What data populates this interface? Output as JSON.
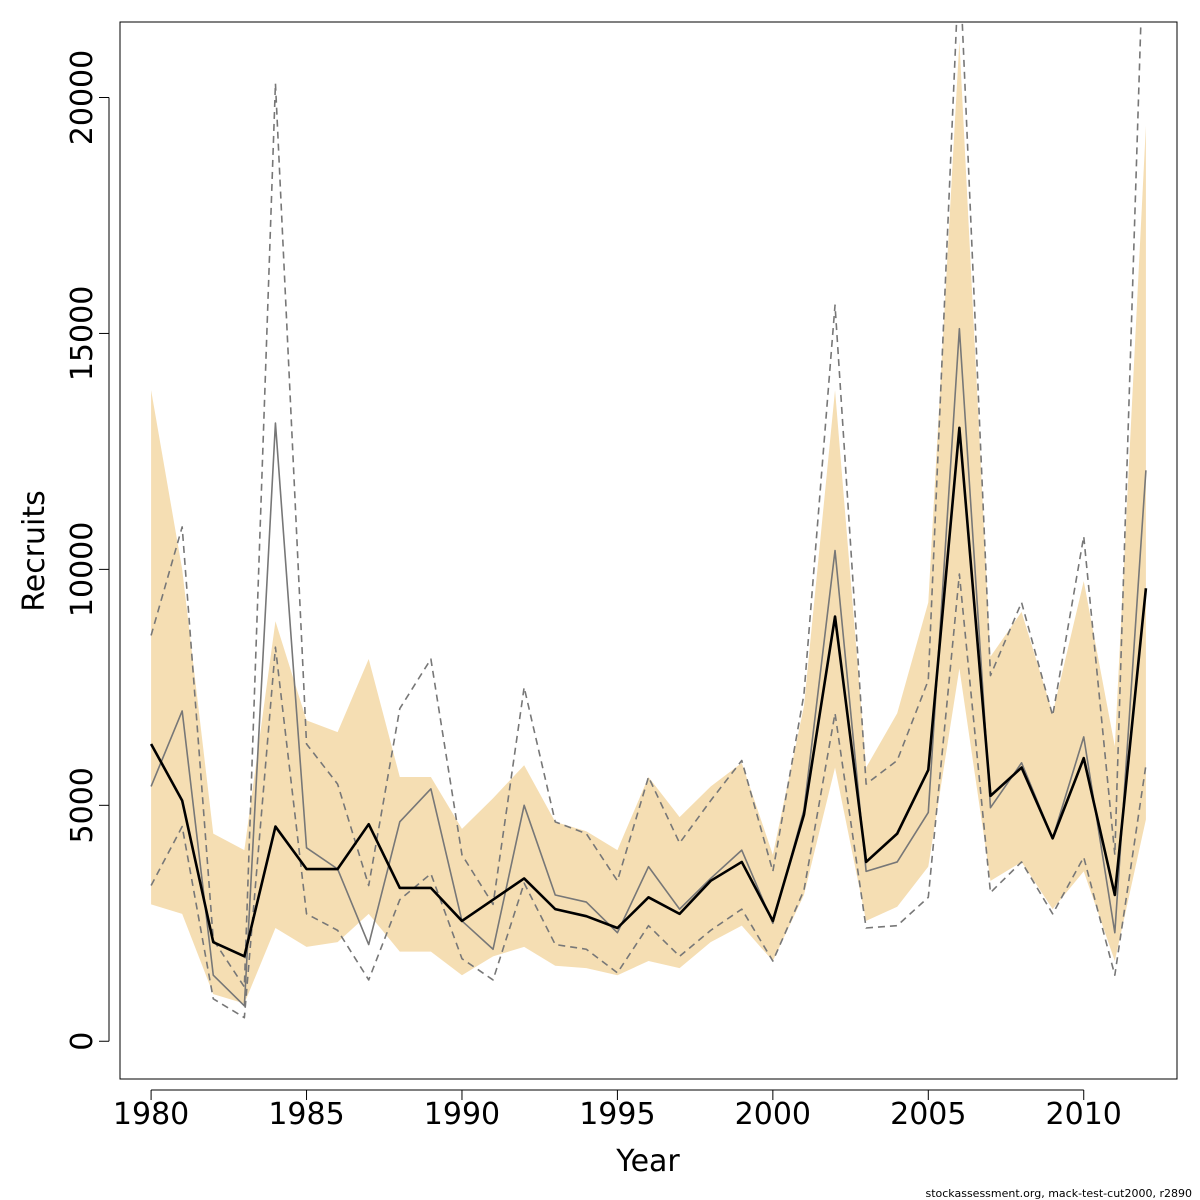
{
  "chart_data": {
    "type": "line",
    "xlabel": "Year",
    "ylabel": "Recruits",
    "xlim": [
      1979,
      2013
    ],
    "ylim": [
      -800,
      21600
    ],
    "x_ticks": [
      1980,
      1985,
      1990,
      1995,
      2000,
      2005,
      2010
    ],
    "x_tick_labels": [
      "1980",
      "1985",
      "1990",
      "1995",
      "2000",
      "2005",
      "2010"
    ],
    "y_ticks": [
      0,
      5000,
      10000,
      15000,
      20000
    ],
    "y_tick_labels": [
      "0",
      "5000",
      "10000",
      "15000",
      "20000"
    ],
    "grid": false,
    "x": [
      1980,
      1981,
      1982,
      1983,
      1984,
      1985,
      1986,
      1987,
      1988,
      1989,
      1990,
      1991,
      1992,
      1993,
      1994,
      1995,
      1996,
      1997,
      1998,
      1999,
      2000,
      2001,
      2002,
      2003,
      2004,
      2005,
      2006,
      2007,
      2008,
      2009,
      2010,
      2011,
      2012
    ],
    "band": {
      "color": "#f5deb3",
      "lower": [
        2900,
        2700,
        1000,
        800,
        2400,
        2000,
        2100,
        2700,
        1900,
        1900,
        1400,
        1800,
        2000,
        1600,
        1550,
        1400,
        1700,
        1550,
        2100,
        2450,
        1700,
        3100,
        5800,
        2550,
        2850,
        3700,
        7900,
        3400,
        3800,
        2800,
        3600,
        1700,
        4700
      ],
      "upper": [
        13800,
        10000,
        4400,
        4050,
        8900,
        6800,
        6550,
        8100,
        5600,
        5600,
        4500,
        5150,
        5850,
        4650,
        4450,
        4050,
        5600,
        4750,
        5400,
        5900,
        3950,
        7100,
        13800,
        5800,
        6950,
        9300,
        21200,
        8150,
        9100,
        6950,
        9750,
        6250,
        19400
      ]
    },
    "series": [
      {
        "style": "median",
        "color": "#000000",
        "values": [
          6300,
          5100,
          2100,
          1800,
          4550,
          3650,
          3650,
          4600,
          3250,
          3250,
          2550,
          3000,
          3450,
          2800,
          2650,
          2400,
          3050,
          2700,
          3400,
          3800,
          2550,
          4800,
          9000,
          3800,
          4400,
          5750,
          13000,
          5200,
          5800,
          4300,
          6000,
          3100,
          9600
        ]
      },
      {
        "style": "solid",
        "color": "#777777",
        "values": [
          5400,
          7000,
          1400,
          750,
          13100,
          4100,
          3650,
          2050,
          4650,
          5350,
          2550,
          1950,
          5000,
          3100,
          2950,
          2300,
          3700,
          2800,
          3450,
          4050,
          2500,
          4900,
          10400,
          3600,
          3800,
          4850,
          15100,
          4950,
          5900,
          4300,
          6450,
          2300,
          12100
        ]
      },
      {
        "style": "dashed",
        "color": "#777777",
        "values": [
          3300,
          4550,
          900,
          500,
          8350,
          2700,
          2350,
          1300,
          3000,
          3550,
          1750,
          1300,
          3350,
          2050,
          1950,
          1450,
          2450,
          1800,
          2350,
          2800,
          1700,
          3200,
          6950,
          2400,
          2450,
          3050,
          9900,
          3150,
          3800,
          2700,
          3900,
          1400,
          5850
        ]
      },
      {
        "style": "dashed",
        "color": "#777777",
        "values": [
          8600,
          10900,
          2150,
          1150,
          20300,
          6300,
          5450,
          3300,
          7050,
          8100,
          3950,
          2900,
          7500,
          4650,
          4400,
          3400,
          5600,
          4200,
          5100,
          5950,
          3600,
          7350,
          15600,
          5450,
          5950,
          7650,
          23000,
          7750,
          9300,
          6900,
          10700,
          3950,
          25000
        ]
      }
    ]
  },
  "footer": "stockassessment.org, mack-test-cut2000, r2890"
}
